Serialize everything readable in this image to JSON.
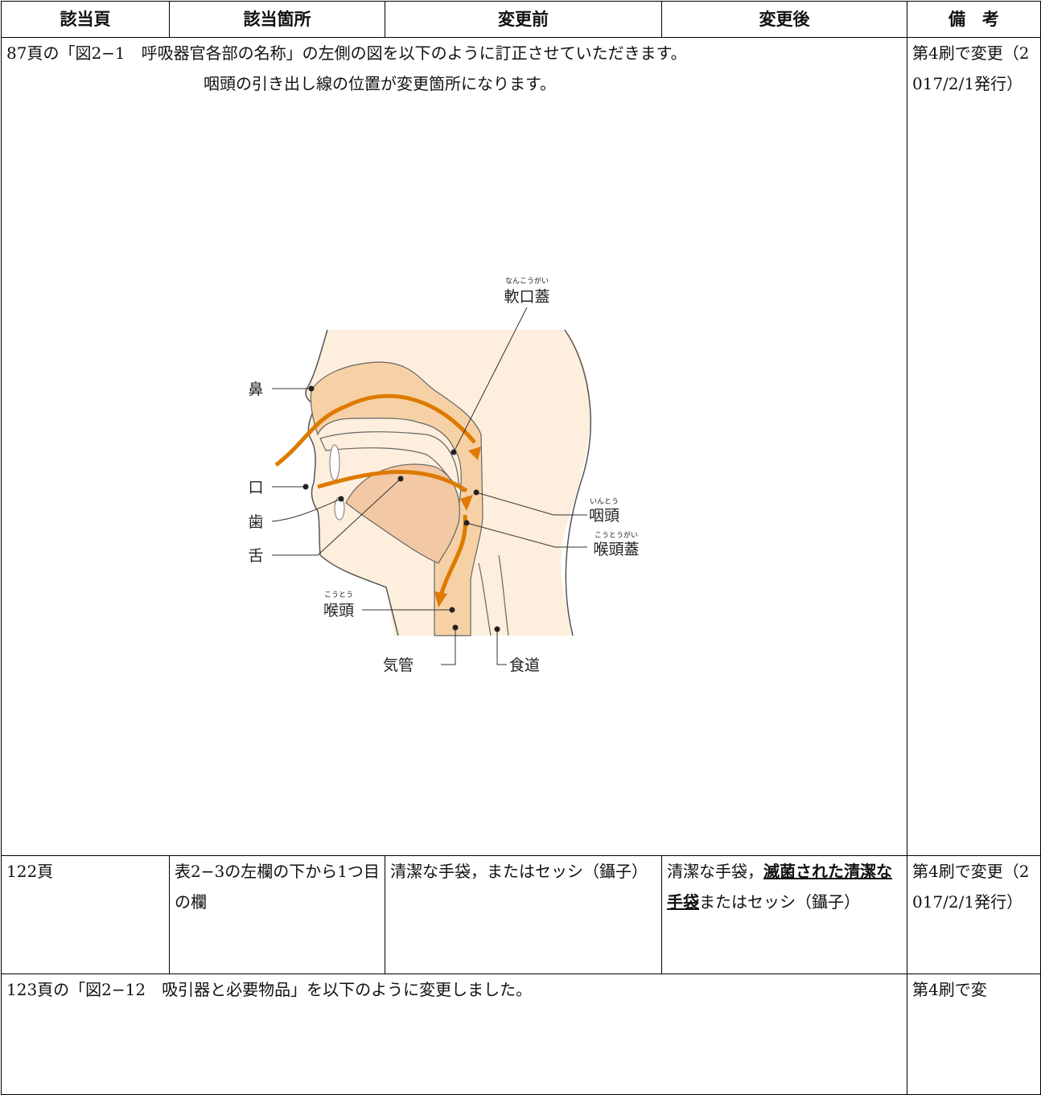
{
  "table": {
    "header": [
      "該当頁",
      "該当箇所",
      "変更前",
      "変更後",
      "備　考"
    ],
    "rows": [
      {
        "text": "87頁の「図2−1　呼吸器官各部の名称」の左側の図を以下のように訂正させていただきます。",
        "note": "咽頭の引き出し線の位置が変更箇所になります。",
        "figure": {
          "labels": [
            {
              "text": "軟口蓋",
              "ruby": "なんこうがい"
            },
            {
              "text": "鼻"
            },
            {
              "text": "口"
            },
            {
              "text": "歯"
            },
            {
              "text": "舌"
            },
            {
              "text": "喉頭",
              "ruby": "こうとう"
            },
            {
              "text": "気管"
            },
            {
              "text": "食道"
            },
            {
              "text": "咽頭",
              "ruby": "いんとう"
            },
            {
              "text": "喉頭蓋",
              "ruby": "こうとうがい"
            }
          ]
        },
        "remarks": "第4刷で変更（2017/2/1発行）"
      },
      {
        "cells": [
          "122頁",
          "表2−3の左欄の下から1つ目の欄",
          "清潔な手袋，またはセッシ（鑷子）"
        ],
        "after": [
          {
            "text": "清潔な手袋，",
            "emphasis": false
          },
          {
            "text": "滅菌された清潔な手袋",
            "emphasis": true
          },
          {
            "text": "またはセッシ（鑷子）",
            "emphasis": false
          }
        ],
        "remarks": "第4刷で変更（2017/2/1発行）"
      },
      {
        "text": "123頁の「図2−12　吸引器と必要物品」を以下のように変更しました。",
        "remarks": "第4刷で変"
      }
    ]
  }
}
